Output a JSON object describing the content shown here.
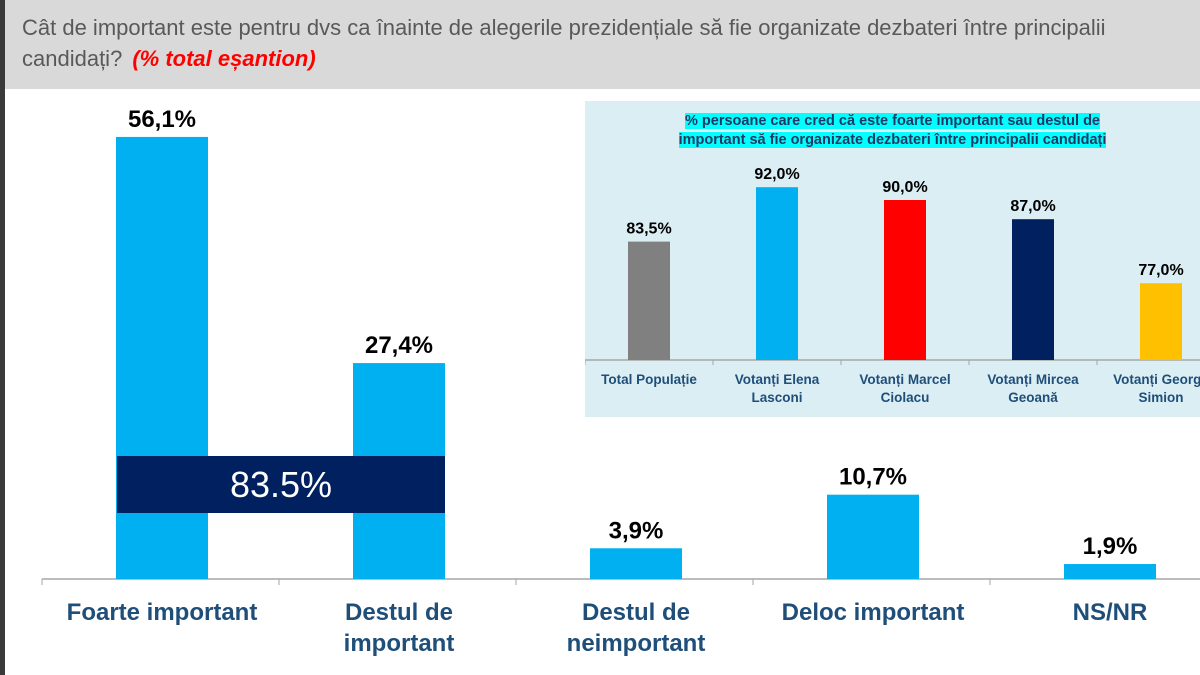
{
  "header": {
    "question": "Cât de important este pentru dvs ca înainte de alegerile prezidențiale să fie organizate dezbateri între principalii candidați?",
    "subtitle": "(% total eșantion)"
  },
  "overlay": {
    "label": "83.5%"
  },
  "chart_data": [
    {
      "type": "bar",
      "title": "",
      "categories": [
        [
          "Foarte important"
        ],
        [
          "Destul de",
          "important"
        ],
        [
          "Destul de",
          "neimportant"
        ],
        [
          "Deloc important"
        ],
        [
          "NS/NR"
        ]
      ],
      "values": [
        56.1,
        27.4,
        3.9,
        10.7,
        1.9
      ],
      "value_labels": [
        "56,1%",
        "27,4%",
        "3,9%",
        "10,7%",
        "1,9%"
      ],
      "ylim": [
        0,
        60
      ],
      "color": "#00b0f0"
    },
    {
      "type": "bar",
      "title": "% persoane care cred că este foarte important sau destul de important să fie organizate dezbateri între principalii candidați",
      "title_lines": [
        "% persoane care cred că este foarte important sau destul de",
        "important să fie organizate dezbateri între principalii candidați"
      ],
      "categories": [
        [
          "Total Populație"
        ],
        [
          "Votanți Elena",
          "Lasconi"
        ],
        [
          "Votanți Marcel",
          "Ciolacu"
        ],
        [
          "Votanți Mircea",
          "Geoană"
        ],
        [
          "Votanți George",
          "Simion"
        ]
      ],
      "values": [
        83.5,
        92.0,
        90.0,
        87.0,
        77.0
      ],
      "value_labels": [
        "83,5%",
        "92,0%",
        "90,0%",
        "87,0%",
        "77,0%"
      ],
      "ylim": [
        65,
        100
      ],
      "colors": [
        "#808080",
        "#00b0f0",
        "#ff0000",
        "#002060",
        "#ffc000"
      ]
    }
  ]
}
